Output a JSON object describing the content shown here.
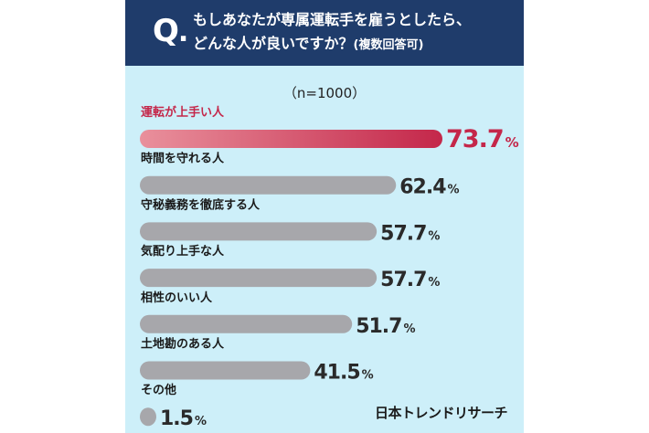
{
  "header": {
    "q_mark": "Q",
    "q_dot": ".",
    "line1": "もしあなたが専属運転手を雇うとしたら、",
    "line2": "どんな人が良いですか？",
    "line2_note": "(複数回答可)"
  },
  "sample_size": "（n=1000）",
  "source": "日本トレンドリサーチ",
  "colors": {
    "header_bg": "#1f3c6b",
    "panel_bg": "#cdeff9",
    "highlight_start": "#e9909c",
    "highlight_end": "#c4274a",
    "bar_gray": "#a7a7ab"
  },
  "chart_data": {
    "type": "bar",
    "orientation": "horizontal",
    "unit": "%",
    "categories": [
      "運転が上手い人",
      "時間を守れる人",
      "守秘義務を徹底する人",
      "気配り上手な人",
      "相性のいい人",
      "土地勘のある人",
      "その他"
    ],
    "values": [
      73.7,
      62.4,
      57.7,
      57.7,
      51.7,
      41.5,
      1.5
    ],
    "value_labels": [
      "73.7",
      "62.4",
      "57.7",
      "57.7",
      "51.7",
      "41.5",
      "1.5"
    ],
    "highlight_index": 0,
    "xlim": [
      0,
      100
    ],
    "grid": false,
    "legend": "none"
  }
}
